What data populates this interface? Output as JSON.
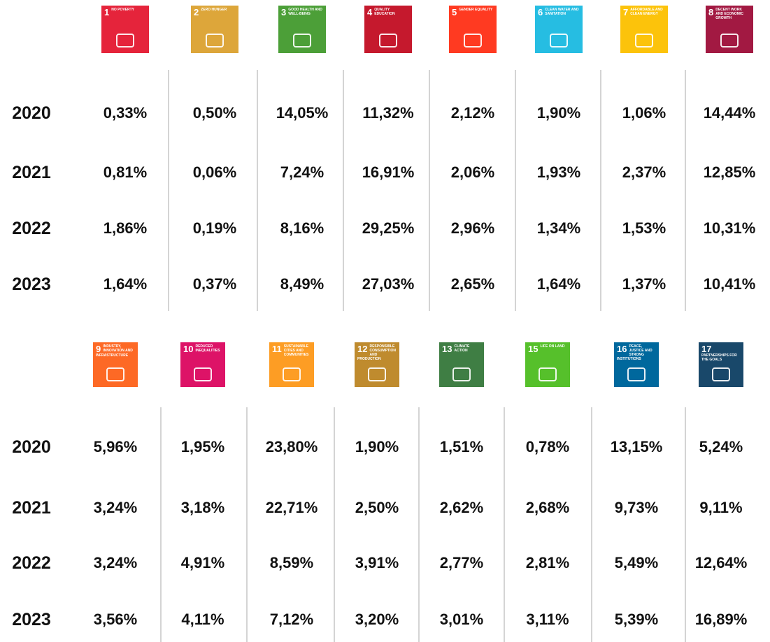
{
  "tables": [
    {
      "goals": [
        {
          "number": "1",
          "label": "NO POVERTY",
          "color": "#e5243b"
        },
        {
          "number": "2",
          "label": "ZERO HUNGER",
          "color": "#dda63a"
        },
        {
          "number": "3",
          "label": "GOOD HEALTH AND WELL-BEING",
          "color": "#4c9f38"
        },
        {
          "number": "4",
          "label": "QUALITY EDUCATION",
          "color": "#c5192d"
        },
        {
          "number": "5",
          "label": "GENDER EQUALITY",
          "color": "#ff3a21"
        },
        {
          "number": "6",
          "label": "CLEAN WATER AND SANITATION",
          "color": "#26bde2"
        },
        {
          "number": "7",
          "label": "AFFORDABLE AND CLEAN ENERGY",
          "color": "#fcc30b"
        },
        {
          "number": "8",
          "label": "DECENT WORK AND ECONOMIC GROWTH",
          "color": "#a21942"
        }
      ],
      "rows": [
        {
          "year": "2020",
          "values": [
            "0,33%",
            "0,50%",
            "14,05%",
            "11,32%",
            "2,12%",
            "1,90%",
            "1,06%",
            "14,44%"
          ]
        },
        {
          "year": "2021",
          "values": [
            "0,81%",
            "0,06%",
            "7,24%",
            "16,91%",
            "2,06%",
            "1,93%",
            "2,37%",
            "12,85%"
          ]
        },
        {
          "year": "2022",
          "values": [
            "1,86%",
            "0,19%",
            "8,16%",
            "29,25%",
            "2,96%",
            "1,34%",
            "1,53%",
            "10,31%"
          ]
        },
        {
          "year": "2023",
          "values": [
            "1,64%",
            "0,37%",
            "8,49%",
            "27,03%",
            "2,65%",
            "1,64%",
            "1,37%",
            "10,41%"
          ]
        }
      ]
    },
    {
      "goals": [
        {
          "number": "9",
          "label": "INDUSTRY, INNOVATION AND INFRASTRUCTURE",
          "color": "#fd6925"
        },
        {
          "number": "10",
          "label": "REDUCED INEQUALITIES",
          "color": "#dd1367"
        },
        {
          "number": "11",
          "label": "SUSTAINABLE CITIES AND COMMUNITIES",
          "color": "#fd9d24"
        },
        {
          "number": "12",
          "label": "RESPONSIBLE CONSUMPTION AND PRODUCTION",
          "color": "#bf8b2e"
        },
        {
          "number": "13",
          "label": "CLIMATE ACTION",
          "color": "#3f7e44"
        },
        {
          "number": "15",
          "label": "LIFE ON LAND",
          "color": "#56c02b"
        },
        {
          "number": "16",
          "label": "PEACE, JUSTICE AND STRONG INSTITUTIONS",
          "color": "#00689d"
        },
        {
          "number": "17",
          "label": "PARTNERSHIPS FOR THE GOALS",
          "color": "#19486a"
        }
      ],
      "rows": [
        {
          "year": "2020",
          "values": [
            "5,96%",
            "1,95%",
            "23,80%",
            "1,90%",
            "1,51%",
            "0,78%",
            "13,15%",
            "5,24%"
          ]
        },
        {
          "year": "2021",
          "values": [
            "3,24%",
            "3,18%",
            "22,71%",
            "2,50%",
            "2,62%",
            "2,68%",
            "9,73%",
            "9,11%"
          ]
        },
        {
          "year": "2022",
          "values": [
            "3,24%",
            "4,91%",
            "8,59%",
            "3,91%",
            "2,77%",
            "2,81%",
            "5,49%",
            "12,64%"
          ]
        },
        {
          "year": "2023",
          "values": [
            "3,56%",
            "4,11%",
            "7,12%",
            "3,20%",
            "3,01%",
            "3,11%",
            "5,39%",
            "16,89%"
          ]
        }
      ]
    }
  ]
}
